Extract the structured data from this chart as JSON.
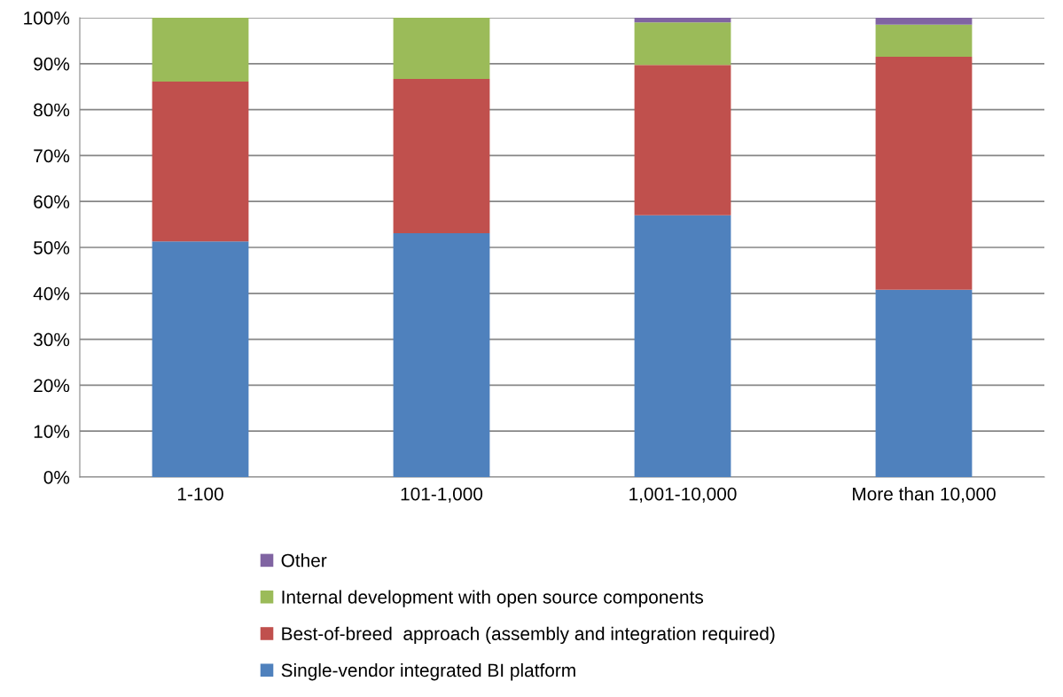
{
  "chart_data": {
    "type": "bar",
    "stacked": true,
    "categories": [
      "1-100",
      "101-1,000",
      "1,001-10,000",
      "More than 10,000"
    ],
    "series": [
      {
        "name": "Single-vendor integrated BI platform",
        "color": "#4f81bd",
        "values": [
          51.3,
          53.1,
          57.0,
          40.8
        ]
      },
      {
        "name": "Best-of-breed  approach (assembly and integration required)",
        "color": "#c0504d",
        "values": [
          34.8,
          33.6,
          32.7,
          50.7
        ]
      },
      {
        "name": "Internal development with open source components",
        "color": "#9bbb59",
        "values": [
          13.9,
          13.3,
          9.3,
          7.0
        ]
      },
      {
        "name": "Other",
        "color": "#8064a2",
        "values": [
          0,
          0,
          1.0,
          1.5
        ]
      }
    ],
    "ylim": [
      0,
      100
    ],
    "yticks": [
      {
        "value": 0,
        "label": "0%"
      },
      {
        "value": 10,
        "label": "10%"
      },
      {
        "value": 20,
        "label": "20%"
      },
      {
        "value": 30,
        "label": "30%"
      },
      {
        "value": 40,
        "label": "40%"
      },
      {
        "value": 50,
        "label": "50%"
      },
      {
        "value": 60,
        "label": "60%"
      },
      {
        "value": 70,
        "label": "70%"
      },
      {
        "value": 80,
        "label": "80%"
      },
      {
        "value": 90,
        "label": "90%"
      },
      {
        "value": 100,
        "label": "100%"
      }
    ],
    "grid": "y",
    "legend": "bottom"
  }
}
